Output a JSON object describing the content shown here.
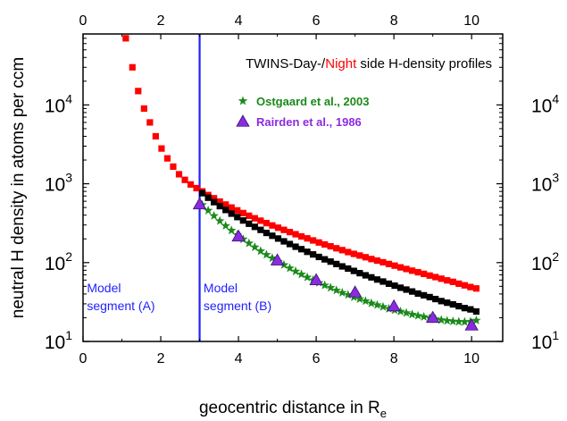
{
  "chart_data": {
    "type": "scatter",
    "title_parts": [
      {
        "text": "TWINS-Day-/",
        "color": "#000000"
      },
      {
        "text": "Night",
        "color": "#ff0000"
      },
      {
        "text": " side H-density profiles",
        "color": "#000000"
      }
    ],
    "xlabel": "geocentric distance in R",
    "xlabel_sub": "e",
    "ylabel": "neutral H density in atoms per ccm",
    "xlim": [
      0,
      10.8
    ],
    "ylim_log10": [
      1,
      4.9
    ],
    "yscale": "log",
    "x_ticks": [
      "0",
      "2",
      "4",
      "6",
      "8",
      "10"
    ],
    "x_tick_values": [
      0,
      2,
      4,
      6,
      8,
      10
    ],
    "y_tick_values": [
      10,
      100,
      1000,
      10000
    ],
    "y_tick_base": "10",
    "y_tick_exponents": [
      "1",
      "2",
      "3",
      "4"
    ],
    "vertical_line_x": 3,
    "vertical_line_color": "#1f1fff",
    "segment_labels": [
      {
        "lines": [
          "Model",
          "segment (A)"
        ],
        "x": 0.1
      },
      {
        "lines": [
          "Model",
          "segment (B)"
        ],
        "x": 3.1
      }
    ],
    "legend_position": "top-right",
    "legend": [
      {
        "name": "Ostgaard et al., 2003",
        "marker": "star",
        "color": "#1a8a1a"
      },
      {
        "name": "Rairden et al., 1986",
        "marker": "triangle",
        "color": "#8a2be2"
      }
    ],
    "series": [
      {
        "label": "night",
        "marker": "square",
        "color": "#ff0000",
        "x": [
          1.1,
          1.27,
          1.42,
          1.57,
          1.72,
          1.87,
          2.02,
          2.17,
          2.32,
          2.47,
          2.62,
          2.77,
          2.92,
          3.07,
          3.22,
          3.37,
          3.52,
          3.67,
          3.82,
          3.97,
          4.12,
          4.27,
          4.42,
          4.57,
          4.72,
          4.87,
          5.02,
          5.17,
          5.32,
          5.47,
          5.62,
          5.77,
          5.92,
          6.07,
          6.22,
          6.37,
          6.52,
          6.67,
          6.82,
          6.97,
          7.12,
          7.27,
          7.42,
          7.57,
          7.72,
          7.87,
          8.02,
          8.17,
          8.32,
          8.47,
          8.62,
          8.77,
          8.92,
          9.07,
          9.22,
          9.37,
          9.52,
          9.67,
          9.82,
          9.97,
          10.12
        ],
        "y": [
          70000,
          30000,
          15000,
          9000,
          6000,
          4000,
          2800,
          2100,
          1650,
          1320,
          1120,
          980,
          880,
          800,
          720,
          655,
          595,
          545,
          500,
          460,
          425,
          393,
          365,
          340,
          317,
          296,
          277,
          260,
          244,
          229,
          215,
          203,
          191,
          180,
          170,
          161,
          152,
          144,
          136,
          129,
          123,
          117,
          111,
          106,
          101,
          96,
          91.5,
          87,
          83,
          79,
          75.5,
          72,
          68.5,
          65.5,
          62.5,
          59.5,
          57,
          54,
          51.5,
          49,
          47
        ]
      },
      {
        "label": "day",
        "marker": "square",
        "color": "#000000",
        "x": [
          3.07,
          3.22,
          3.37,
          3.52,
          3.67,
          3.82,
          3.97,
          4.12,
          4.27,
          4.42,
          4.57,
          4.72,
          4.87,
          5.02,
          5.17,
          5.32,
          5.47,
          5.62,
          5.77,
          5.92,
          6.07,
          6.22,
          6.37,
          6.52,
          6.67,
          6.82,
          6.97,
          7.12,
          7.27,
          7.42,
          7.57,
          7.72,
          7.87,
          8.02,
          8.17,
          8.32,
          8.47,
          8.62,
          8.77,
          8.92,
          9.07,
          9.22,
          9.37,
          9.52,
          9.67,
          9.82,
          9.97,
          10.12
        ],
        "y": [
          760,
          665,
          585,
          520,
          465,
          418,
          378,
          342,
          311,
          284,
          260,
          238,
          219,
          202,
          186,
          172,
          159,
          148,
          137,
          127,
          118,
          110,
          103,
          96,
          89.5,
          84,
          78.5,
          73.5,
          69,
          65,
          61,
          57.5,
          54,
          51,
          48,
          45.5,
          43,
          40.5,
          38.5,
          36.5,
          34.5,
          32.5,
          31,
          29.5,
          28,
          26.5,
          25.5,
          24
        ]
      },
      {
        "label": "Ostgaard et al., 2003",
        "marker": "star",
        "color": "#1a8a1a",
        "x": [
          3.07,
          3.22,
          3.37,
          3.52,
          3.67,
          3.82,
          3.97,
          4.12,
          4.27,
          4.42,
          4.57,
          4.72,
          4.87,
          5.02,
          5.17,
          5.32,
          5.47,
          5.62,
          5.77,
          5.92,
          6.07,
          6.22,
          6.37,
          6.52,
          6.67,
          6.82,
          6.97,
          7.12,
          7.27,
          7.42,
          7.57,
          7.72,
          7.87,
          8.02,
          8.17,
          8.32,
          8.47,
          8.62,
          8.77,
          8.92,
          9.07,
          9.22,
          9.37,
          9.52,
          9.67,
          9.82,
          9.97,
          10.12
        ],
        "y": [
          540,
          458,
          392,
          338,
          293,
          256,
          225,
          198,
          176,
          157,
          140,
          126,
          114,
          103,
          93.5,
          85,
          77.5,
          71,
          65,
          60,
          55.5,
          51.5,
          48,
          44.5,
          41.5,
          39,
          36.5,
          34.5,
          32.5,
          30.5,
          29,
          27.5,
          26,
          25,
          24,
          23,
          22,
          21.2,
          20.5,
          19.8,
          19.2,
          18.7,
          18.3,
          18,
          17.8,
          17.7,
          17.8,
          18.5
        ]
      },
      {
        "label": "Rairden et al., 1986",
        "marker": "triangle",
        "color": "#8a2be2",
        "x": [
          3,
          4,
          5,
          6,
          7,
          8,
          9,
          10
        ],
        "y": [
          550,
          215,
          107,
          60,
          42,
          28,
          20,
          16
        ]
      }
    ]
  }
}
